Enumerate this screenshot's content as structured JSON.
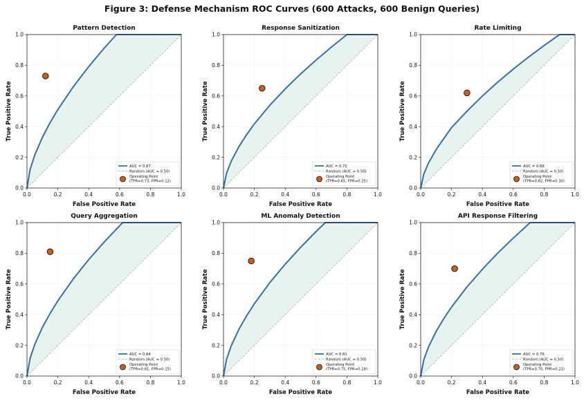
{
  "figure_title": "Figure 3: Defense Mechanism ROC Curves (600 Attacks, 600 Benign Queries)",
  "colors": {
    "curve": "#3070b0",
    "fill": "#d8ebe4",
    "random": "#aaaaaa",
    "operating_point": "#c8601e",
    "grid": "#e6e6e6"
  },
  "chart_data": [
    {
      "type": "line",
      "title": "Pattern Detection",
      "xlabel": "False Positive Rate",
      "ylabel": "True Positive Rate",
      "xlim": [
        0,
        1
      ],
      "ylim": [
        0,
        1
      ],
      "grid": true,
      "legend": "bottom-right",
      "ticks": [
        "0.0",
        "0.2",
        "0.4",
        "0.6",
        "0.8",
        "1.0"
      ],
      "legend_entries": [
        "AUC = 0.87",
        "Random (AUC = 0.50)",
        "Operating Point",
        "(TPR=0.73, FPR=0.12)"
      ],
      "curve": [
        [
          0,
          0
        ],
        [
          0.02,
          0.12
        ],
        [
          0.05,
          0.214
        ],
        [
          0.1,
          0.33
        ],
        [
          0.15,
          0.427
        ],
        [
          0.2,
          0.511
        ],
        [
          0.3,
          0.66
        ],
        [
          0.4,
          0.791
        ],
        [
          0.5,
          0.911
        ],
        [
          0.58,
          1
        ],
        [
          1,
          1
        ]
      ],
      "operating_point": {
        "fpr": 0.12,
        "tpr": 0.73
      }
    },
    {
      "type": "line",
      "title": "Response Sanitization",
      "xlabel": "False Positive Rate",
      "ylabel": "True Positive Rate",
      "xlim": [
        0,
        1
      ],
      "ylim": [
        0,
        1
      ],
      "grid": true,
      "legend": "bottom-right",
      "ticks": [
        "0.0",
        "0.2",
        "0.4",
        "0.6",
        "0.8",
        "1.0"
      ],
      "legend_entries": [
        "AUC = 0.72",
        "Random (AUC = 0.50)",
        "Operating Point",
        "(TPR=0.65, FPR=0.25)"
      ],
      "curve": [
        [
          0,
          0
        ],
        [
          0.02,
          0.098
        ],
        [
          0.05,
          0.174
        ],
        [
          0.1,
          0.27
        ],
        [
          0.15,
          0.348
        ],
        [
          0.2,
          0.418
        ],
        [
          0.3,
          0.539
        ],
        [
          0.4,
          0.646
        ],
        [
          0.5,
          0.744
        ],
        [
          0.6,
          0.834
        ],
        [
          0.7,
          0.919
        ],
        [
          0.8,
          1
        ],
        [
          1,
          1
        ]
      ],
      "operating_point": {
        "fpr": 0.25,
        "tpr": 0.65
      }
    },
    {
      "type": "line",
      "title": "Rate Limiting",
      "xlabel": "False Positive Rate",
      "ylabel": "True Positive Rate",
      "xlim": [
        0,
        1
      ],
      "ylim": [
        0,
        1
      ],
      "grid": true,
      "legend": "bottom-right",
      "ticks": [
        "0.0",
        "0.2",
        "0.4",
        "0.6",
        "0.8",
        "1.0"
      ],
      "legend_entries": [
        "AUC = 0.68",
        "Random (AUC = 0.50)",
        "Operating Point",
        "(TPR=0.62, FPR=0.30)"
      ],
      "curve": [
        [
          0,
          0
        ],
        [
          0.02,
          0.091
        ],
        [
          0.05,
          0.162
        ],
        [
          0.1,
          0.251
        ],
        [
          0.15,
          0.323
        ],
        [
          0.2,
          0.394
        ],
        [
          0.3,
          0.501
        ],
        [
          0.4,
          0.6
        ],
        [
          0.5,
          0.691
        ],
        [
          0.6,
          0.775
        ],
        [
          0.7,
          0.854
        ],
        [
          0.8,
          0.929
        ],
        [
          0.9,
          1
        ],
        [
          1,
          1
        ]
      ],
      "operating_point": {
        "fpr": 0.3,
        "tpr": 0.62
      }
    },
    {
      "type": "line",
      "title": "Query Aggregation",
      "xlabel": "False Positive Rate",
      "ylabel": "True Positive Rate",
      "xlim": [
        0,
        1
      ],
      "ylim": [
        0,
        1
      ],
      "grid": true,
      "legend": "bottom-right",
      "ticks": [
        "0.0",
        "0.2",
        "0.4",
        "0.6",
        "0.8",
        "1.0"
      ],
      "legend_entries": [
        "AUC = 0.84",
        "Random (AUC = 0.50)",
        "Operating Point",
        "(TPR=0.81, FPR=0.15)"
      ],
      "curve": [
        [
          0,
          0
        ],
        [
          0.02,
          0.115
        ],
        [
          0.05,
          0.205
        ],
        [
          0.1,
          0.317
        ],
        [
          0.15,
          0.409
        ],
        [
          0.2,
          0.49
        ],
        [
          0.3,
          0.633
        ],
        [
          0.4,
          0.759
        ],
        [
          0.5,
          0.873
        ],
        [
          0.6,
          0.979
        ],
        [
          0.62,
          1
        ],
        [
          1,
          1
        ]
      ],
      "operating_point": {
        "fpr": 0.15,
        "tpr": 0.81
      }
    },
    {
      "type": "line",
      "title": "ML Anomaly Detection",
      "xlabel": "False Positive Rate",
      "ylabel": "True Positive Rate",
      "xlim": [
        0,
        1
      ],
      "ylim": [
        0,
        1
      ],
      "grid": true,
      "legend": "bottom-right",
      "ticks": [
        "0.0",
        "0.2",
        "0.4",
        "0.6",
        "0.8",
        "1.0"
      ],
      "legend_entries": [
        "AUC = 0.81",
        "Random (AUC = 0.50)",
        "Operating Point",
        "(TPR=0.75, FPR=0.18)"
      ],
      "curve": [
        [
          0,
          0
        ],
        [
          0.02,
          0.11
        ],
        [
          0.05,
          0.197
        ],
        [
          0.1,
          0.305
        ],
        [
          0.15,
          0.393
        ],
        [
          0.2,
          0.471
        ],
        [
          0.3,
          0.609
        ],
        [
          0.4,
          0.729
        ],
        [
          0.5,
          0.839
        ],
        [
          0.6,
          0.942
        ],
        [
          0.66,
          1
        ],
        [
          1,
          1
        ]
      ],
      "operating_point": {
        "fpr": 0.18,
        "tpr": 0.75
      }
    },
    {
      "type": "line",
      "title": "API Response Filtering",
      "xlabel": "False Positive Rate",
      "ylabel": "True Positive Rate",
      "xlim": [
        0,
        1
      ],
      "ylim": [
        0,
        1
      ],
      "grid": true,
      "legend": "bottom-right",
      "ticks": [
        "0.0",
        "0.2",
        "0.4",
        "0.6",
        "0.8",
        "1.0"
      ],
      "legend_entries": [
        "AUC = 0.76",
        "Random (AUC = 0.50)",
        "Operating Point",
        "(TPR=0.70, FPR=0.22)"
      ],
      "curve": [
        [
          0,
          0
        ],
        [
          0.02,
          0.105
        ],
        [
          0.05,
          0.188
        ],
        [
          0.1,
          0.291
        ],
        [
          0.15,
          0.375
        ],
        [
          0.2,
          0.45
        ],
        [
          0.3,
          0.581
        ],
        [
          0.4,
          0.696
        ],
        [
          0.5,
          0.802
        ],
        [
          0.6,
          0.899
        ],
        [
          0.7,
          0.991
        ],
        [
          0.71,
          1
        ],
        [
          1,
          1
        ]
      ],
      "operating_point": {
        "fpr": 0.22,
        "tpr": 0.7
      }
    }
  ]
}
